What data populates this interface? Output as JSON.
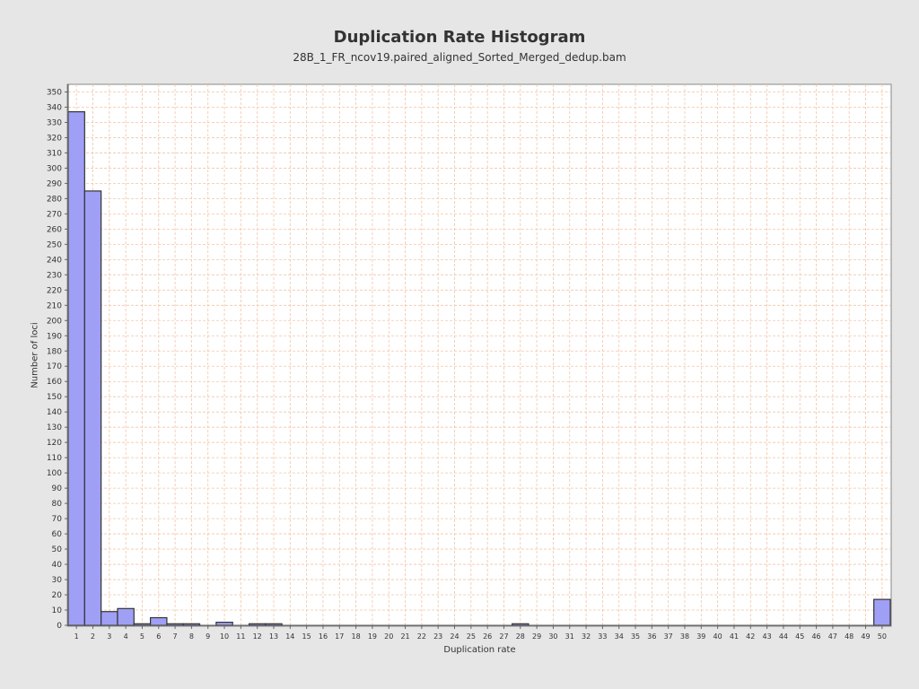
{
  "chart_data": {
    "type": "bar",
    "title": "Duplication Rate Histogram",
    "subtitle": "28B_1_FR_ncov19.paired_aligned_Sorted_Merged_dedup.bam",
    "xlabel": "Duplication rate",
    "ylabel": "Number of loci",
    "xlim": [
      0.5,
      50.5
    ],
    "ylim": [
      0,
      355
    ],
    "y_tick_step": 10,
    "grid": true,
    "legend": "none",
    "bar_color": "#9f9ff5",
    "bar_edge_color": "#333333",
    "grid_color": "#f2c5a8",
    "categories": [
      1,
      2,
      3,
      4,
      5,
      6,
      7,
      8,
      9,
      10,
      11,
      12,
      13,
      14,
      15,
      16,
      17,
      18,
      19,
      20,
      21,
      22,
      23,
      24,
      25,
      26,
      27,
      28,
      29,
      30,
      31,
      32,
      33,
      34,
      35,
      36,
      37,
      38,
      39,
      40,
      41,
      42,
      43,
      44,
      45,
      46,
      47,
      48,
      49,
      50
    ],
    "values": [
      337,
      285,
      9,
      11,
      1,
      5,
      1,
      1,
      0,
      2,
      0,
      1,
      1,
      0,
      0,
      0,
      0,
      0,
      0,
      0,
      0,
      0,
      0,
      0,
      0,
      0,
      0,
      1,
      0,
      0,
      0,
      0,
      0,
      0,
      0,
      0,
      0,
      0,
      0,
      0,
      0,
      0,
      0,
      0,
      0,
      0,
      0,
      0,
      0,
      17
    ]
  }
}
